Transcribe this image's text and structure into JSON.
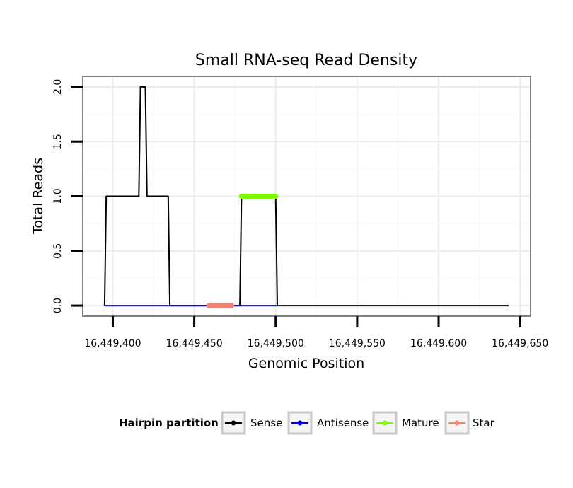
{
  "chart_data": {
    "type": "line",
    "title": "Small RNA-seq Read Density",
    "xlabel": "Genomic Position",
    "ylabel": "Total Reads",
    "xlim": [
      16449382,
      16449656
    ],
    "ylim": [
      -0.09,
      2.09
    ],
    "x_ticks": [
      16449400,
      16449450,
      16449500,
      16449550,
      16449600,
      16449650
    ],
    "x_tick_labels": [
      "16,449,400",
      "16,449,450",
      "16,449,500",
      "16,449,550",
      "16,449,600",
      "16,449,650"
    ],
    "y_ticks": [
      0,
      0.5,
      1,
      1.5,
      2
    ],
    "y_tick_labels": [
      "0.0",
      "0.5",
      "1.0",
      "1.5",
      "2.0"
    ],
    "grid": true,
    "legend_title": "Hairpin partition",
    "legend_position": "bottom",
    "series": [
      {
        "name": "Sense",
        "color": "#000000",
        "x": [
          16449395,
          16449396,
          16449412,
          16449413,
          16449414,
          16449416,
          16449417,
          16449418,
          16449420,
          16449421,
          16449422,
          16449426,
          16449434,
          16449435,
          16449437,
          16449478,
          16449479,
          16449480,
          16449500,
          16449501,
          16449643
        ],
        "y": [
          0,
          1,
          1,
          1,
          1,
          1,
          2,
          2,
          2,
          1,
          1,
          1,
          1,
          0,
          0,
          0,
          1,
          1,
          1,
          0,
          0
        ]
      },
      {
        "name": "Antisense",
        "color": "#0000ff",
        "x": [
          16449395,
          16449434,
          16449478,
          16449501
        ],
        "y": [
          0,
          0,
          0,
          0
        ]
      },
      {
        "name": "Mature",
        "color": "#7cfc00",
        "x": [
          16449479,
          16449500
        ],
        "y": [
          1,
          1
        ]
      },
      {
        "name": "Star",
        "color": "#fa8072",
        "x": [
          16449459,
          16449473
        ],
        "y": [
          0,
          0
        ]
      }
    ]
  }
}
